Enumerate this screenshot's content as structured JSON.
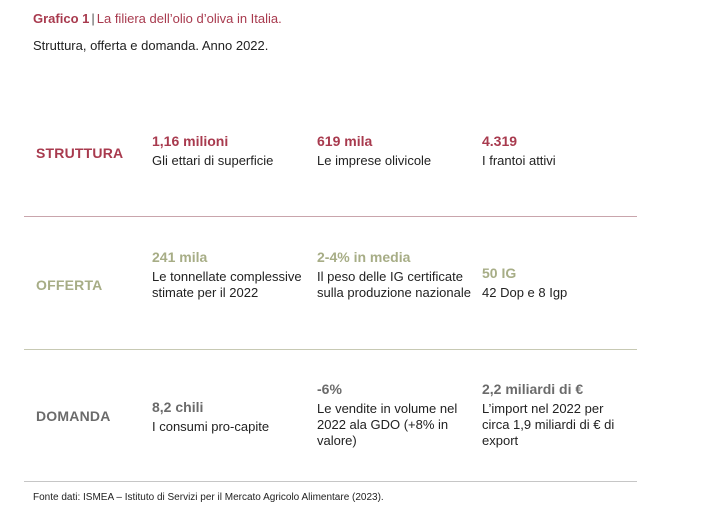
{
  "header": {
    "label": "Grafico 1",
    "separator": "|",
    "title": "La filiera dell’olio d’oliva in Italia.",
    "subtitle": "Struttura, offerta e domanda. Anno 2022."
  },
  "colors": {
    "struttura": "#a83a4e",
    "offerta": "#a7ad86",
    "domanda": "#6b6b6b"
  },
  "sections": {
    "struttura": {
      "label": "STRUTTURA",
      "items": [
        {
          "value": "1,16 milioni",
          "desc": "Gli ettari di superficie"
        },
        {
          "value": "619 mila",
          "desc": "Le imprese olivicole"
        },
        {
          "value": "4.319",
          "desc": "I frantoi attivi"
        }
      ]
    },
    "offerta": {
      "label": "OFFERTA",
      "items": [
        {
          "value": "241 mila",
          "desc": "Le tonnellate complessive stimate per il 2022"
        },
        {
          "value": "2-4% in media",
          "desc": "Il peso delle IG certificate sulla produzione nazionale"
        },
        {
          "value": "50 IG",
          "desc": "42 Dop e 8 Igp"
        }
      ]
    },
    "domanda": {
      "label": "DOMANDA",
      "items": [
        {
          "value": "8,2 chili",
          "desc": "I consumi pro-capite"
        },
        {
          "value": "-6%",
          "desc": "Le vendite in volume nel 2022 ala GDO (+8% in valore)"
        },
        {
          "value": "2,2 miliardi di €",
          "desc": "L’import nel 2022 per circa 1,9 miliardi di € di export"
        }
      ]
    }
  },
  "footer": {
    "source": "Fonte dati: ISMEA –  Istituto di Servizi per il Mercato Agricolo Alimentare (2023)."
  }
}
